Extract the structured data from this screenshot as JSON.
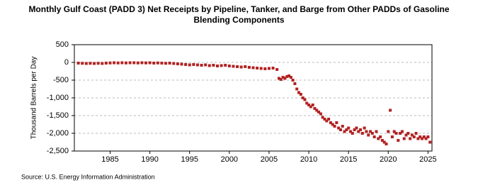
{
  "chart_data": {
    "type": "scatter",
    "title": "Monthly Gulf Coast (PADD 3) Net Receipts by Pipeline, Tanker, and Barge from Other PADDs of Gasoline Blending Components",
    "y_label": "Thousand Barrels per Day",
    "source": "Source: U.S. Energy Information Administration",
    "color": "#b22222",
    "grid": true,
    "xlim": [
      1980.5,
      2025.5
    ],
    "xticks": [
      1985,
      1990,
      1995,
      2000,
      2005,
      2010,
      2015,
      2020,
      2025
    ],
    "ylim": [
      -2500,
      500
    ],
    "yticks": [
      500,
      0,
      -500,
      {
        "value": -1000,
        "label": "-1,000"
      },
      {
        "value": -1500,
        "label": "-1,500"
      },
      {
        "value": -2000,
        "label": "-2,000"
      },
      {
        "value": -2500,
        "label": "-2,500"
      }
    ],
    "x": [
      1981,
      1981.5,
      1982,
      1982.5,
      1983,
      1983.5,
      1984,
      1984.5,
      1985,
      1985.5,
      1986,
      1986.5,
      1987,
      1987.5,
      1988,
      1988.5,
      1989,
      1989.5,
      1990,
      1990.5,
      1991,
      1991.5,
      1992,
      1992.5,
      1993,
      1993.5,
      1994,
      1994.5,
      1995,
      1995.5,
      1996,
      1996.5,
      1997,
      1997.5,
      1998,
      1998.5,
      1999,
      1999.5,
      2000,
      2000.5,
      2001,
      2001.5,
      2002,
      2002.5,
      2003,
      2003.5,
      2004,
      2004.5,
      2005,
      2005.5,
      2006,
      2006.25,
      2006.5,
      2006.75,
      2007,
      2007.25,
      2007.5,
      2007.75,
      2008,
      2008.25,
      2008.5,
      2008.75,
      2009,
      2009.25,
      2009.5,
      2009.75,
      2010,
      2010.25,
      2010.5,
      2010.75,
      2011,
      2011.25,
      2011.5,
      2011.75,
      2012,
      2012.25,
      2012.5,
      2012.75,
      2013,
      2013.25,
      2013.5,
      2013.75,
      2014,
      2014.25,
      2014.5,
      2014.75,
      2015,
      2015.25,
      2015.5,
      2015.75,
      2016,
      2016.25,
      2016.5,
      2016.75,
      2017,
      2017.25,
      2017.5,
      2017.75,
      2018,
      2018.25,
      2018.5,
      2018.75,
      2019,
      2019.25,
      2019.5,
      2019.75,
      2020,
      2020.25,
      2020.5,
      2020.75,
      2021,
      2021.25,
      2021.5,
      2021.75,
      2022,
      2022.25,
      2022.5,
      2022.75,
      2023,
      2023.25,
      2023.5,
      2023.75,
      2024,
      2024.25,
      2024.5,
      2024.75,
      2025,
      2025.25
    ],
    "values": [
      -20,
      -25,
      -30,
      -25,
      -30,
      -25,
      -30,
      -20,
      -15,
      -10,
      -15,
      -10,
      -15,
      -10,
      -10,
      -15,
      -10,
      -15,
      -10,
      -20,
      -15,
      -20,
      -25,
      -20,
      -30,
      -40,
      -50,
      -60,
      -70,
      -60,
      -70,
      -80,
      -70,
      -90,
      -80,
      -100,
      -90,
      -80,
      -100,
      -110,
      -120,
      -130,
      -120,
      -140,
      -150,
      -160,
      -170,
      -180,
      -170,
      -160,
      -200,
      -450,
      -480,
      -420,
      -450,
      -400,
      -380,
      -420,
      -500,
      -600,
      -750,
      -850,
      -900,
      -1000,
      -1050,
      -1150,
      -1200,
      -1250,
      -1200,
      -1300,
      -1350,
      -1400,
      -1450,
      -1550,
      -1600,
      -1650,
      -1600,
      -1700,
      -1750,
      -1800,
      -1700,
      -1850,
      -1900,
      -1800,
      -1950,
      -1900,
      -1850,
      -1950,
      -2000,
      -1900,
      -1850,
      -1950,
      -1900,
      -2000,
      -1850,
      -1950,
      -2050,
      -1950,
      -2000,
      -2100,
      -1950,
      -2150,
      -2100,
      -2200,
      -2250,
      -2300,
      -1950,
      -1350,
      -2100,
      -1950,
      -2000,
      -2200,
      -2000,
      -1950,
      -2150,
      -2050,
      -2000,
      -2150,
      -2050,
      -2100,
      -2000,
      -2150,
      -2100,
      -2150,
      -2100,
      -2150,
      -2100,
      -2250
    ]
  }
}
